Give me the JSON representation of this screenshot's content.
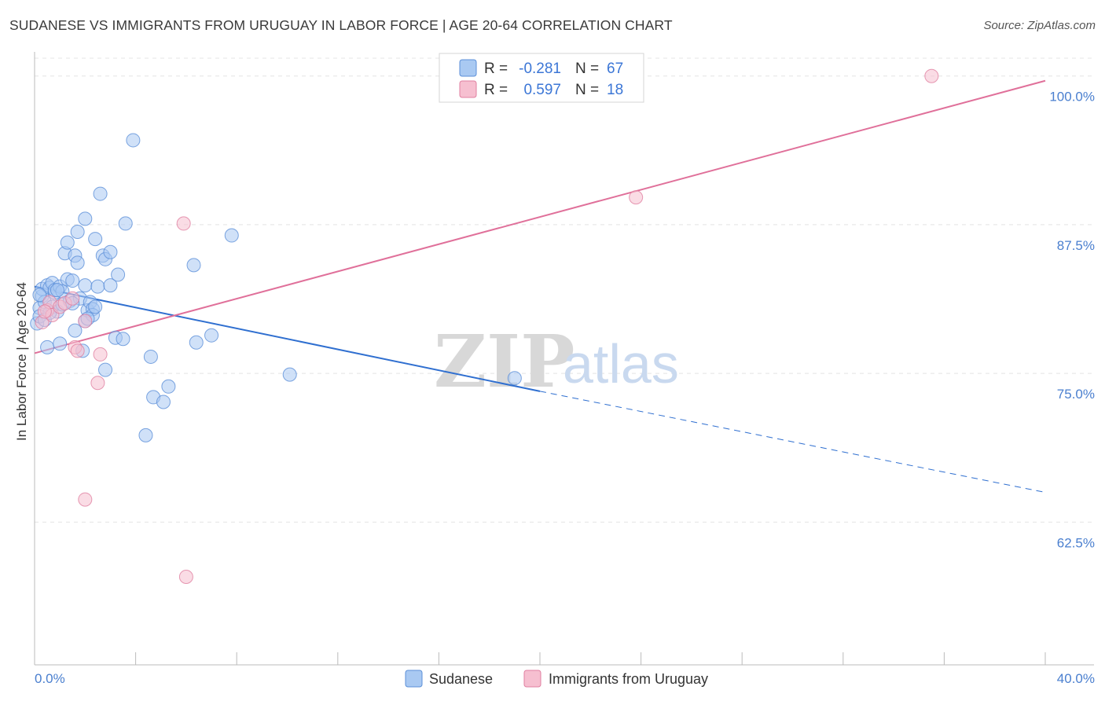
{
  "header": {
    "title": "SUDANESE VS IMMIGRANTS FROM URUGUAY IN LABOR FORCE | AGE 20-64 CORRELATION CHART",
    "source": "Source: ZipAtlas.com"
  },
  "chart_data": {
    "type": "scatter",
    "title": "SUDANESE VS IMMIGRANTS FROM URUGUAY IN LABOR FORCE | AGE 20-64 CORRELATION CHART",
    "xlabel": "",
    "ylabel": "In Labor Force | Age 20-64",
    "xlim": [
      0,
      40
    ],
    "ylim": [
      50.5,
      101.5
    ],
    "x_tick_labels": [
      "0.0%",
      "40.0%"
    ],
    "y_ticks": [
      62.5,
      75.0,
      87.5,
      100.0
    ],
    "y_tick_labels": [
      "62.5%",
      "75.0%",
      "87.5%",
      "100.0%"
    ],
    "legend": {
      "r_label": "R =",
      "n_label": "N =",
      "entries": [
        {
          "name": "Sudanese",
          "r": "-0.281",
          "n": "67",
          "color": "#a9c9f2",
          "edge": "#5b8fd8"
        },
        {
          "name": "Immigrants from Uruguay",
          "r": "0.597",
          "n": "18",
          "color": "#f6bfd0",
          "edge": "#e07fa0"
        }
      ]
    },
    "watermark": {
      "zip": "ZIP",
      "atlas": "atlas"
    },
    "series": [
      {
        "name": "Sudanese",
        "color": "#a9c9f2",
        "edge": "#5b8fd8",
        "line_color": "#2f6fd0",
        "trend": {
          "x0": 0.0,
          "y0": 82.3,
          "x1": 20.0,
          "y1": 73.5,
          "x_ext": 40.0,
          "y_ext": 65.0
        },
        "points": [
          [
            0.1,
            79.2
          ],
          [
            0.2,
            80.5
          ],
          [
            0.2,
            79.8
          ],
          [
            0.3,
            81.5
          ],
          [
            0.3,
            82.1
          ],
          [
            0.4,
            81.0
          ],
          [
            0.4,
            79.5
          ],
          [
            0.5,
            82.4
          ],
          [
            0.5,
            77.2
          ],
          [
            0.6,
            82.2
          ],
          [
            0.7,
            82.6
          ],
          [
            0.7,
            80.6
          ],
          [
            0.8,
            81.8
          ],
          [
            0.8,
            82.0
          ],
          [
            0.9,
            80.2
          ],
          [
            1.0,
            82.3
          ],
          [
            1.0,
            77.5
          ],
          [
            1.1,
            81.9
          ],
          [
            1.1,
            80.8
          ],
          [
            1.2,
            85.1
          ],
          [
            1.3,
            86.0
          ],
          [
            1.3,
            82.9
          ],
          [
            1.4,
            81.1
          ],
          [
            1.5,
            82.8
          ],
          [
            1.6,
            84.9
          ],
          [
            1.6,
            78.6
          ],
          [
            1.7,
            86.9
          ],
          [
            1.7,
            84.3
          ],
          [
            1.8,
            81.3
          ],
          [
            1.9,
            76.9
          ],
          [
            2.0,
            79.4
          ],
          [
            2.0,
            82.4
          ],
          [
            2.0,
            88.0
          ],
          [
            2.1,
            80.3
          ],
          [
            2.2,
            81.0
          ],
          [
            2.3,
            80.4
          ],
          [
            2.3,
            79.9
          ],
          [
            2.4,
            80.6
          ],
          [
            2.4,
            86.3
          ],
          [
            2.5,
            82.3
          ],
          [
            2.6,
            90.1
          ],
          [
            2.7,
            84.9
          ],
          [
            2.8,
            84.6
          ],
          [
            2.8,
            75.3
          ],
          [
            3.0,
            85.2
          ],
          [
            3.0,
            82.4
          ],
          [
            3.2,
            78.0
          ],
          [
            3.3,
            83.3
          ],
          [
            3.5,
            77.9
          ],
          [
            3.6,
            87.6
          ],
          [
            3.9,
            94.6
          ],
          [
            4.4,
            69.8
          ],
          [
            4.6,
            76.4
          ],
          [
            4.7,
            73.0
          ],
          [
            5.1,
            72.6
          ],
          [
            5.3,
            73.9
          ],
          [
            6.3,
            84.1
          ],
          [
            6.4,
            77.6
          ],
          [
            7.0,
            78.2
          ],
          [
            7.8,
            86.6
          ],
          [
            10.1,
            74.9
          ],
          [
            19.0,
            74.6
          ],
          [
            0.2,
            81.6
          ],
          [
            0.6,
            80.1
          ],
          [
            1.5,
            80.9
          ],
          [
            0.9,
            82.0
          ],
          [
            2.1,
            79.6
          ]
        ]
      },
      {
        "name": "Immigrants from Uruguay",
        "color": "#f6bfd0",
        "edge": "#e07fa0",
        "line_color": "#e0709a",
        "trend": {
          "x0": 0.0,
          "y0": 76.7,
          "x1": 40.0,
          "y1": 99.6
        },
        "points": [
          [
            0.3,
            79.3
          ],
          [
            0.5,
            80.3
          ],
          [
            0.6,
            81.0
          ],
          [
            0.7,
            79.9
          ],
          [
            1.0,
            80.6
          ],
          [
            1.2,
            80.9
          ],
          [
            1.5,
            81.3
          ],
          [
            1.6,
            77.2
          ],
          [
            1.7,
            76.9
          ],
          [
            2.0,
            79.4
          ],
          [
            2.0,
            64.4
          ],
          [
            2.5,
            74.2
          ],
          [
            2.6,
            76.6
          ],
          [
            5.9,
            87.6
          ],
          [
            6.0,
            57.9
          ],
          [
            23.8,
            89.8
          ],
          [
            35.5,
            100.0
          ],
          [
            0.4,
            80.2
          ]
        ]
      }
    ]
  }
}
